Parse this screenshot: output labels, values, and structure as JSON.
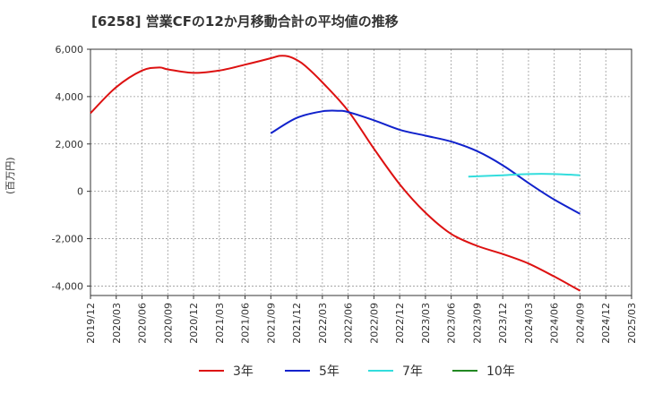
{
  "title": "[6258]  営業CFの12か月移動合計の平均値の推移",
  "ylabel": "(百万円)",
  "colors": {
    "3y": "#dd1111",
    "5y": "#1122cc",
    "7y": "#33dddd",
    "10y": "#228822",
    "grid": "#999999",
    "axis": "#333333"
  },
  "chart_data": {
    "type": "line",
    "title": "[6258]  営業CFの12か月移動合計の平均値の推移",
    "xlabel": "",
    "ylabel": "(百万円)",
    "ylim": [
      -4400,
      6000
    ],
    "yticks": [
      6000,
      4000,
      2000,
      0,
      -2000,
      -4000
    ],
    "ytick_labels": [
      "6,000",
      "4,000",
      "2,000",
      "0",
      "-2,000",
      "-4,000"
    ],
    "xticks": [
      "2019/12",
      "2020/03",
      "2020/06",
      "2020/09",
      "2020/12",
      "2021/03",
      "2021/06",
      "2021/09",
      "2021/12",
      "2022/03",
      "2022/06",
      "2022/09",
      "2022/12",
      "2023/03",
      "2023/06",
      "2023/09",
      "2023/12",
      "2024/03",
      "2024/06",
      "2024/09",
      "2024/12",
      "2025/03"
    ],
    "grid": true,
    "legend_position": "bottom",
    "series": [
      {
        "name": "3年",
        "color": "#dd1111",
        "points": [
          [
            "2019/12",
            3300
          ],
          [
            "2020/03",
            4400
          ],
          [
            "2020/06",
            5100
          ],
          [
            "2020/08",
            5230
          ],
          [
            "2020/09",
            5150
          ],
          [
            "2020/12",
            5000
          ],
          [
            "2021/03",
            5100
          ],
          [
            "2021/06",
            5350
          ],
          [
            "2021/09",
            5620
          ],
          [
            "2021/10",
            5720
          ],
          [
            "2021/11",
            5700
          ],
          [
            "2021/12",
            5550
          ],
          [
            "2022/01",
            5300
          ],
          [
            "2022/03",
            4600
          ],
          [
            "2022/06",
            3400
          ],
          [
            "2022/09",
            1800
          ],
          [
            "2022/12",
            300
          ],
          [
            "2023/03",
            -900
          ],
          [
            "2023/06",
            -1800
          ],
          [
            "2023/09",
            -2300
          ],
          [
            "2023/12",
            -2650
          ],
          [
            "2024/03",
            -3050
          ],
          [
            "2024/06",
            -3600
          ],
          [
            "2024/09",
            -4200
          ]
        ]
      },
      {
        "name": "5年",
        "color": "#1122cc",
        "points": [
          [
            "2021/09",
            2450
          ],
          [
            "2021/12",
            3100
          ],
          [
            "2022/03",
            3380
          ],
          [
            "2022/05",
            3400
          ],
          [
            "2022/06",
            3350
          ],
          [
            "2022/09",
            3000
          ],
          [
            "2022/12",
            2600
          ],
          [
            "2023/03",
            2350
          ],
          [
            "2023/06",
            2100
          ],
          [
            "2023/09",
            1700
          ],
          [
            "2023/12",
            1100
          ],
          [
            "2024/03",
            350
          ],
          [
            "2024/06",
            -350
          ],
          [
            "2024/09",
            -950
          ]
        ]
      },
      {
        "name": "7年",
        "color": "#33dddd",
        "points": [
          [
            "2023/08",
            620
          ],
          [
            "2023/12",
            680
          ],
          [
            "2024/03",
            730
          ],
          [
            "2024/06",
            730
          ],
          [
            "2024/09",
            680
          ]
        ]
      },
      {
        "name": "10年",
        "color": "#228822",
        "points": []
      }
    ]
  }
}
